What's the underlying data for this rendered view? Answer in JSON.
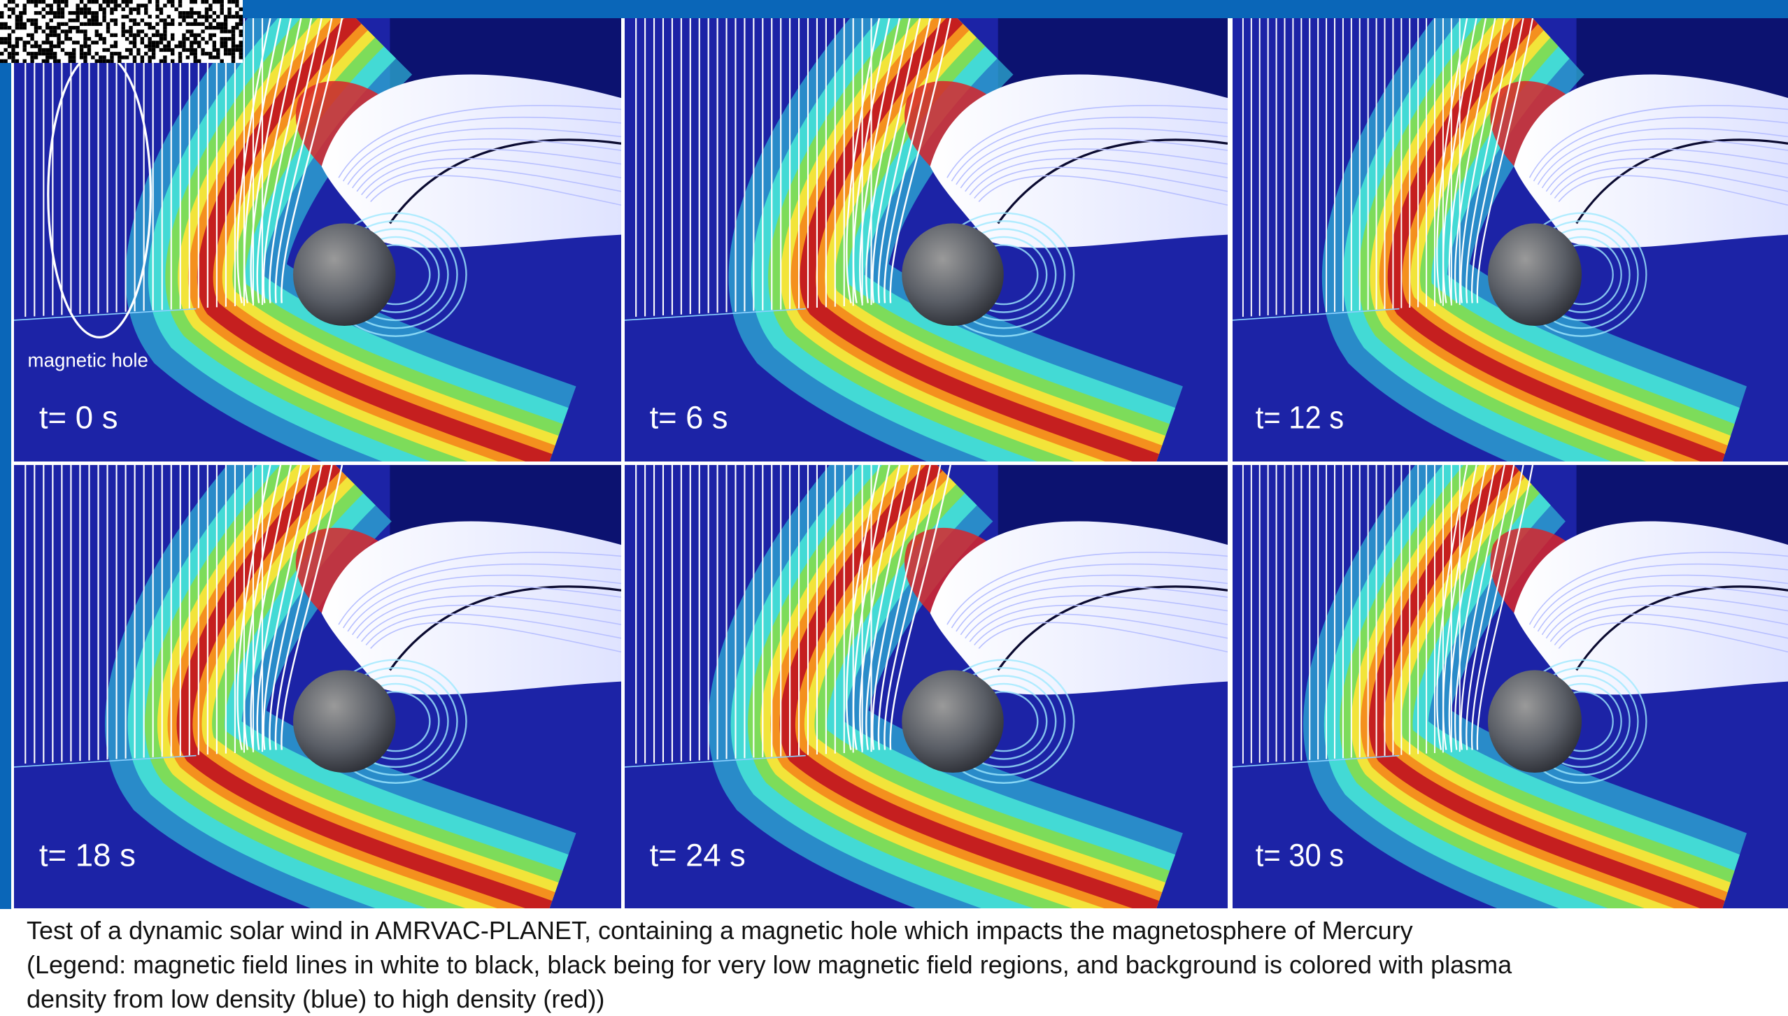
{
  "panels": [
    {
      "label": "t= 0 s"
    },
    {
      "label": "t= 6 s"
    },
    {
      "label": "t= 12 s"
    },
    {
      "label": "t= 18 s"
    },
    {
      "label": "t= 24 s"
    },
    {
      "label": "t= 30 s"
    }
  ],
  "annotation": "magnetic hole",
  "caption": [
    "Test of a dynamic solar wind in AMRVAC-PLANET, containing a magnetic hole which impacts the magnetosphere of Mercury",
    "(Legend: magnetic field lines in white to black, black being for very low magnetic field regions, and background is colored with plasma",
    "density from low density (blue) to high density (red))"
  ]
}
